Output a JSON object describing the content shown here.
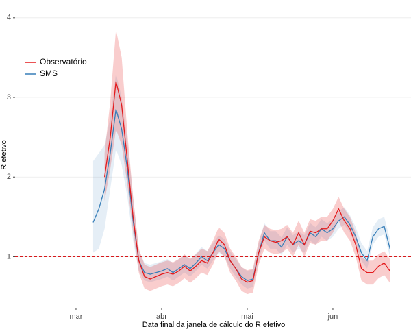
{
  "chart_data": {
    "type": "line",
    "band": true,
    "x_label": "Data final da janela de cálculo do R efetivo",
    "y_label": "R efetivo",
    "categories": [
      null,
      null,
      null,
      null,
      null,
      null,
      null,
      null,
      null,
      null,
      null,
      "mar",
      null,
      null,
      null,
      null,
      null,
      null,
      null,
      null,
      null,
      null,
      null,
      null,
      null,
      null,
      "abr",
      null,
      null,
      null,
      null,
      null,
      null,
      null,
      null,
      null,
      null,
      null,
      null,
      null,
      null,
      "mai",
      null,
      null,
      null,
      null,
      null,
      null,
      null,
      null,
      null,
      null,
      null,
      null,
      null,
      null,
      "jun",
      null,
      null,
      null,
      null,
      null,
      null,
      null,
      null,
      null,
      null,
      null,
      null,
      null
    ],
    "ylim": [
      0.35,
      4.05
    ],
    "yticks": [
      1,
      2,
      3,
      4
    ],
    "grid": true,
    "hline": 1,
    "hline_color": "#d7191c",
    "legend": "upper-left",
    "series": [
      {
        "name": "Observatório",
        "color": "#e41a1c",
        "values": [
          null,
          null,
          null,
          null,
          null,
          null,
          null,
          null,
          null,
          null,
          null,
          null,
          null,
          null,
          null,
          null,
          2.0,
          2.5,
          3.2,
          2.9,
          2.2,
          1.5,
          0.95,
          0.75,
          0.72,
          0.75,
          0.78,
          0.8,
          0.78,
          0.82,
          0.88,
          0.82,
          0.88,
          0.95,
          0.92,
          1.05,
          1.22,
          1.15,
          0.95,
          0.85,
          0.72,
          0.68,
          0.7,
          1.05,
          1.25,
          1.2,
          1.18,
          1.2,
          1.25,
          1.15,
          1.3,
          1.15,
          1.32,
          1.3,
          1.35,
          1.35,
          1.45,
          1.6,
          1.45,
          1.35,
          1.15,
          0.85,
          0.8,
          0.8,
          0.88,
          0.92,
          0.82,
          null,
          null,
          null
        ],
        "lower": [
          null,
          null,
          null,
          null,
          null,
          null,
          null,
          null,
          null,
          null,
          null,
          null,
          null,
          null,
          null,
          null,
          1.7,
          2.1,
          2.6,
          2.4,
          1.9,
          1.3,
          0.8,
          0.6,
          0.57,
          0.6,
          0.63,
          0.65,
          0.63,
          0.67,
          0.73,
          0.67,
          0.73,
          0.8,
          0.77,
          0.9,
          1.07,
          1.0,
          0.8,
          0.7,
          0.57,
          0.53,
          0.55,
          0.9,
          1.1,
          1.05,
          1.03,
          1.05,
          1.1,
          1.0,
          1.15,
          1.0,
          1.17,
          1.15,
          1.2,
          1.2,
          1.3,
          1.45,
          1.3,
          1.2,
          1.0,
          0.7,
          0.65,
          0.65,
          0.73,
          0.77,
          0.67,
          null,
          null,
          null
        ],
        "upper": [
          null,
          null,
          null,
          null,
          null,
          null,
          null,
          null,
          null,
          null,
          null,
          null,
          null,
          null,
          null,
          null,
          2.3,
          2.95,
          3.85,
          3.5,
          2.55,
          1.75,
          1.1,
          0.9,
          0.87,
          0.9,
          0.93,
          0.95,
          0.93,
          0.97,
          1.03,
          0.97,
          1.03,
          1.1,
          1.07,
          1.2,
          1.37,
          1.3,
          1.1,
          1.0,
          0.87,
          0.83,
          0.85,
          1.2,
          1.4,
          1.35,
          1.33,
          1.35,
          1.4,
          1.3,
          1.45,
          1.3,
          1.47,
          1.45,
          1.5,
          1.5,
          1.6,
          1.75,
          1.6,
          1.5,
          1.3,
          1.0,
          0.95,
          0.95,
          1.03,
          1.07,
          0.97,
          null,
          null,
          null
        ]
      },
      {
        "name": "SMS",
        "color": "#377eb8",
        "values": [
          null,
          null,
          null,
          null,
          null,
          null,
          null,
          null,
          null,
          null,
          null,
          null,
          null,
          null,
          1.43,
          1.6,
          1.85,
          2.3,
          2.85,
          2.6,
          2.1,
          1.45,
          0.95,
          0.8,
          0.78,
          0.8,
          0.82,
          0.85,
          0.8,
          0.85,
          0.9,
          0.85,
          0.92,
          1.0,
          0.95,
          1.05,
          1.15,
          1.1,
          0.95,
          0.85,
          0.75,
          0.7,
          0.72,
          1.05,
          1.3,
          1.2,
          1.2,
          1.12,
          1.25,
          1.15,
          1.2,
          1.15,
          1.3,
          1.25,
          1.35,
          1.3,
          1.35,
          1.45,
          1.5,
          1.4,
          1.25,
          1.05,
          0.95,
          1.25,
          1.35,
          1.38,
          1.1,
          null,
          null,
          null
        ],
        "lower": [
          null,
          null,
          null,
          null,
          null,
          null,
          null,
          null,
          null,
          null,
          null,
          null,
          null,
          null,
          1.05,
          1.1,
          1.35,
          1.85,
          2.35,
          2.15,
          1.75,
          1.2,
          0.82,
          0.7,
          0.68,
          0.7,
          0.72,
          0.75,
          0.7,
          0.75,
          0.8,
          0.75,
          0.82,
          0.9,
          0.85,
          0.95,
          1.05,
          1.0,
          0.85,
          0.75,
          0.65,
          0.6,
          0.62,
          0.95,
          1.2,
          1.1,
          1.1,
          1.02,
          1.15,
          1.05,
          1.1,
          1.05,
          1.2,
          1.15,
          1.25,
          1.2,
          1.25,
          1.35,
          1.4,
          1.3,
          1.15,
          0.95,
          0.85,
          1.15,
          1.25,
          1.28,
          1.0,
          null,
          null,
          null
        ],
        "upper": [
          null,
          null,
          null,
          null,
          null,
          null,
          null,
          null,
          null,
          null,
          null,
          null,
          null,
          null,
          2.2,
          2.3,
          2.4,
          2.75,
          3.3,
          3.0,
          2.45,
          1.75,
          1.08,
          0.92,
          0.9,
          0.92,
          0.94,
          0.97,
          0.92,
          0.97,
          1.02,
          0.97,
          1.04,
          1.12,
          1.07,
          1.17,
          1.27,
          1.22,
          1.07,
          0.97,
          0.87,
          0.82,
          0.84,
          1.17,
          1.42,
          1.32,
          1.32,
          1.24,
          1.37,
          1.27,
          1.32,
          1.27,
          1.42,
          1.37,
          1.47,
          1.42,
          1.47,
          1.57,
          1.62,
          1.52,
          1.37,
          1.17,
          1.07,
          1.37,
          1.47,
          1.5,
          1.22,
          null,
          null,
          null
        ]
      }
    ]
  }
}
